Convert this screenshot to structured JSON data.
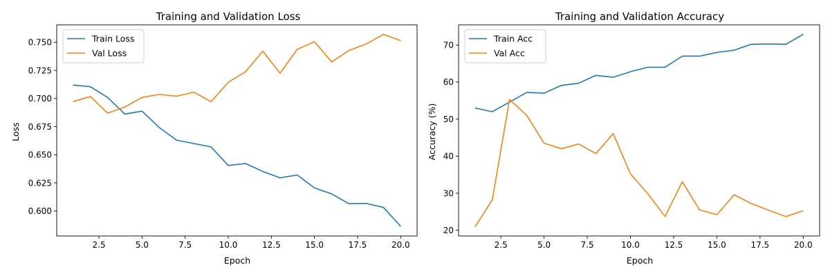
{
  "colors": {
    "train": "#1f77b4",
    "val": "#ff7f0e"
  },
  "chart_data": [
    {
      "type": "line",
      "title": "Training and Validation Loss",
      "xlabel": "Epoch",
      "ylabel": "Loss",
      "x": [
        1,
        2,
        3,
        4,
        5,
        6,
        7,
        8,
        9,
        10,
        11,
        12,
        13,
        14,
        15,
        16,
        17,
        18,
        19,
        20
      ],
      "xlim": [
        0.05,
        20.95
      ],
      "ylim": [
        0.5778,
        0.7655
      ],
      "xticks": [
        2.5,
        5.0,
        7.5,
        10.0,
        12.5,
        15.0,
        17.5,
        20.0
      ],
      "xtick_labels": [
        "2.5",
        "5.0",
        "7.5",
        "10.0",
        "12.5",
        "15.0",
        "17.5",
        "20.0"
      ],
      "yticks": [
        0.6,
        0.625,
        0.65,
        0.675,
        0.7,
        0.725,
        0.75
      ],
      "ytick_labels": [
        "0.600",
        "0.625",
        "0.650",
        "0.675",
        "0.700",
        "0.725",
        "0.750"
      ],
      "grid": false,
      "legend": "top-left",
      "series": [
        {
          "name": "Train Loss",
          "values": [
            0.712,
            0.7105,
            0.701,
            0.6862,
            0.6888,
            0.6742,
            0.663,
            0.66,
            0.657,
            0.6405,
            0.6422,
            0.6352,
            0.6295,
            0.632,
            0.6205,
            0.6152,
            0.6065,
            0.6067,
            0.6032,
            0.5863
          ]
        },
        {
          "name": "Val Loss",
          "values": [
            0.6973,
            0.7018,
            0.687,
            0.6925,
            0.701,
            0.7037,
            0.702,
            0.7057,
            0.6972,
            0.7145,
            0.7238,
            0.7422,
            0.7225,
            0.7438,
            0.7505,
            0.7325,
            0.7428,
            0.7485,
            0.757,
            0.7515
          ]
        }
      ]
    },
    {
      "type": "line",
      "title": "Training and Validation Accuracy",
      "xlabel": "Epoch",
      "ylabel": "Accuracy (%)",
      "x": [
        1,
        2,
        3,
        4,
        5,
        6,
        7,
        8,
        9,
        10,
        11,
        12,
        13,
        14,
        15,
        16,
        17,
        18,
        19,
        20
      ],
      "xlim": [
        0.05,
        20.95
      ],
      "ylim": [
        18.45,
        75.45
      ],
      "xticks": [
        2.5,
        5.0,
        7.5,
        10.0,
        12.5,
        15.0,
        17.5,
        20.0
      ],
      "xtick_labels": [
        "2.5",
        "5.0",
        "7.5",
        "10.0",
        "12.5",
        "15.0",
        "17.5",
        "20.0"
      ],
      "yticks": [
        20,
        30,
        40,
        50,
        60,
        70
      ],
      "ytick_labels": [
        "20",
        "30",
        "40",
        "50",
        "60",
        "70"
      ],
      "grid": false,
      "legend": "top-left",
      "series": [
        {
          "name": "Train Acc",
          "values": [
            53.0,
            52.0,
            54.6,
            57.2,
            57.0,
            59.1,
            59.7,
            61.8,
            61.3,
            62.8,
            64.0,
            64.0,
            67.0,
            67.0,
            68.0,
            68.6,
            70.2,
            70.3,
            70.2,
            72.9
          ]
        },
        {
          "name": "Val Acc",
          "values": [
            20.9,
            28.2,
            55.3,
            51.0,
            43.5,
            42.0,
            43.3,
            40.7,
            46.1,
            35.2,
            29.9,
            23.7,
            33.1,
            25.5,
            24.2,
            29.6,
            27.2,
            25.4,
            23.7,
            25.3
          ]
        }
      ]
    }
  ]
}
